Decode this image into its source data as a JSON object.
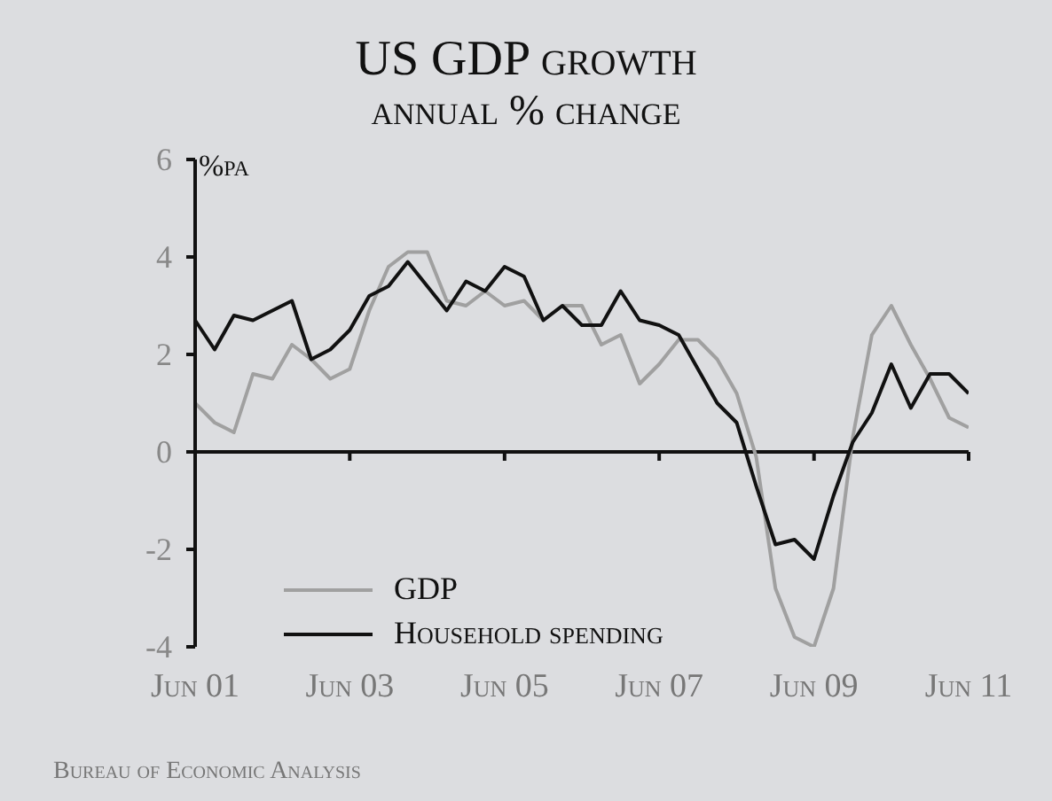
{
  "chart_data": {
    "type": "line",
    "title": "US GDP growth",
    "subtitle": "annual % change",
    "ylabel": "%pa",
    "x": [
      "2001-06",
      "2001-09",
      "2001-12",
      "2002-03",
      "2002-06",
      "2002-09",
      "2002-12",
      "2003-03",
      "2003-06",
      "2003-09",
      "2003-12",
      "2004-03",
      "2004-06",
      "2004-09",
      "2004-12",
      "2005-03",
      "2005-06",
      "2005-09",
      "2005-12",
      "2006-03",
      "2006-06",
      "2006-09",
      "2006-12",
      "2007-03",
      "2007-06",
      "2007-09",
      "2007-12",
      "2008-03",
      "2008-06",
      "2008-09",
      "2008-12",
      "2009-03",
      "2009-06",
      "2009-09",
      "2009-12",
      "2010-03",
      "2010-06",
      "2010-09",
      "2010-12",
      "2011-03",
      "2011-06"
    ],
    "series": [
      {
        "name": "GDP",
        "color": "#a0a0a0",
        "values": [
          1.0,
          0.6,
          0.4,
          1.6,
          1.5,
          2.2,
          1.9,
          1.5,
          1.7,
          2.9,
          3.8,
          4.1,
          4.1,
          3.1,
          3.0,
          3.3,
          3.0,
          3.1,
          2.7,
          3.0,
          3.0,
          2.2,
          2.4,
          1.4,
          1.8,
          2.3,
          2.3,
          1.9,
          1.2,
          -0.1,
          -2.8,
          -3.8,
          -4.0,
          -2.8,
          0.3,
          2.4,
          3.0,
          2.2,
          1.5,
          0.7,
          0.5
        ]
      },
      {
        "name": "Household spending",
        "color": "#111111",
        "values": [
          2.7,
          2.1,
          2.8,
          2.7,
          2.9,
          3.1,
          1.9,
          2.1,
          2.5,
          3.2,
          3.4,
          3.9,
          3.4,
          2.9,
          3.5,
          3.3,
          3.8,
          3.6,
          2.7,
          3.0,
          2.6,
          2.6,
          3.3,
          2.7,
          2.6,
          2.4,
          1.7,
          1.0,
          0.6,
          -0.7,
          -1.9,
          -1.8,
          -2.2,
          -0.9,
          0.2,
          0.8,
          1.8,
          0.9,
          1.6,
          1.6,
          1.2
        ]
      }
    ],
    "xlim": [
      "2001-06",
      "2011-06"
    ],
    "xticks": [
      {
        "value": "2001-06",
        "label": "Jun 01"
      },
      {
        "value": "2003-06",
        "label": "Jun 03"
      },
      {
        "value": "2005-06",
        "label": "Jun 05"
      },
      {
        "value": "2007-06",
        "label": "Jun 07"
      },
      {
        "value": "2009-06",
        "label": "Jun 09"
      },
      {
        "value": "2011-06",
        "label": "Jun 11"
      }
    ],
    "ylim": [
      -4,
      6
    ],
    "yticks": [
      -4,
      -2,
      0,
      2,
      4,
      6
    ],
    "legend": "bottom left",
    "marker": "none",
    "line_style": "solid",
    "annotations": [
      "Bureau of Economic Analysis"
    ]
  }
}
